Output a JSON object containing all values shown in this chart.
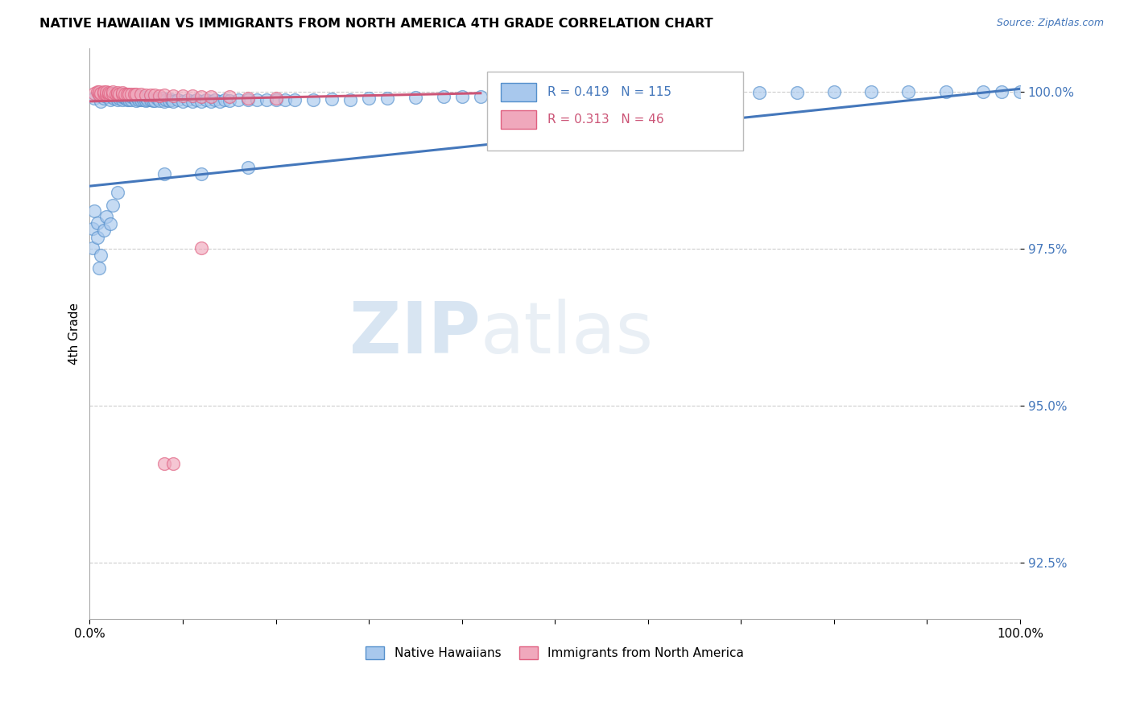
{
  "title": "NATIVE HAWAIIAN VS IMMIGRANTS FROM NORTH AMERICA 4TH GRADE CORRELATION CHART",
  "source": "Source: ZipAtlas.com",
  "ylabel": "4th Grade",
  "xlim": [
    0.0,
    1.0
  ],
  "ylim": [
    0.916,
    1.007
  ],
  "yticks": [
    0.925,
    0.95,
    0.975,
    1.0
  ],
  "ytick_labels": [
    "92.5%",
    "95.0%",
    "97.5%",
    "100.0%"
  ],
  "blue_color": "#A8C8ED",
  "pink_color": "#F0A8BC",
  "blue_edge_color": "#5590CC",
  "pink_edge_color": "#E06080",
  "blue_line_color": "#4477BB",
  "pink_line_color": "#CC5577",
  "tick_label_color": "#4477BB",
  "watermark_color": "#D8E8F5",
  "blue_scatter_x": [
    0.005,
    0.01,
    0.01,
    0.012,
    0.015,
    0.015,
    0.018,
    0.02,
    0.02,
    0.022,
    0.022,
    0.024,
    0.025,
    0.025,
    0.026,
    0.028,
    0.03,
    0.03,
    0.032,
    0.033,
    0.033,
    0.035,
    0.035,
    0.036,
    0.038,
    0.04,
    0.04,
    0.042,
    0.043,
    0.045,
    0.045,
    0.048,
    0.05,
    0.05,
    0.052,
    0.054,
    0.055,
    0.056,
    0.058,
    0.06,
    0.06,
    0.062,
    0.065,
    0.068,
    0.07,
    0.072,
    0.075,
    0.078,
    0.08,
    0.082,
    0.085,
    0.088,
    0.09,
    0.095,
    0.1,
    0.105,
    0.11,
    0.115,
    0.12,
    0.125,
    0.13,
    0.135,
    0.14,
    0.145,
    0.15,
    0.16,
    0.17,
    0.18,
    0.19,
    0.2,
    0.21,
    0.22,
    0.24,
    0.26,
    0.28,
    0.3,
    0.32,
    0.35,
    0.38,
    0.4,
    0.42,
    0.45,
    0.48,
    0.5,
    0.53,
    0.56,
    0.6,
    0.64,
    0.68,
    0.72,
    0.76,
    0.8,
    0.84,
    0.88,
    0.92,
    0.96,
    0.98,
    1.0,
    0.003,
    0.003,
    0.005,
    0.008,
    0.008,
    0.01,
    0.012,
    0.015,
    0.018,
    0.022,
    0.025,
    0.03,
    0.08,
    0.12,
    0.17
  ],
  "blue_scatter_y": [
    0.999,
    0.9995,
    0.9998,
    0.9985,
    0.999,
    0.9998,
    0.9992,
    0.9996,
    0.9998,
    0.9988,
    0.9995,
    0.9992,
    0.9996,
    0.9998,
    0.999,
    0.9994,
    0.9988,
    0.9996,
    0.999,
    0.9993,
    0.9997,
    0.9988,
    0.9993,
    0.9997,
    0.9991,
    0.9987,
    0.9993,
    0.9988,
    0.9995,
    0.9988,
    0.9993,
    0.999,
    0.9986,
    0.9992,
    0.9988,
    0.9992,
    0.9988,
    0.9992,
    0.9988,
    0.9986,
    0.9991,
    0.9988,
    0.9988,
    0.9986,
    0.9986,
    0.999,
    0.9986,
    0.999,
    0.9985,
    0.9988,
    0.9986,
    0.9988,
    0.9985,
    0.9988,
    0.9985,
    0.9987,
    0.9985,
    0.9987,
    0.9985,
    0.9988,
    0.9985,
    0.9987,
    0.9985,
    0.9987,
    0.9986,
    0.9987,
    0.9987,
    0.9987,
    0.9988,
    0.9987,
    0.9988,
    0.9987,
    0.9988,
    0.9989,
    0.9988,
    0.999,
    0.999,
    0.9991,
    0.9992,
    0.9992,
    0.9992,
    0.9994,
    0.9993,
    0.9994,
    0.9995,
    0.9996,
    0.9997,
    0.9998,
    0.9998,
    0.9999,
    0.9999,
    1.0,
    1.0,
    1.0,
    1.0,
    1.0,
    1.0,
    1.0,
    0.9752,
    0.9782,
    0.9811,
    0.9768,
    0.9791,
    0.972,
    0.974,
    0.978,
    0.9801,
    0.979,
    0.982,
    0.984,
    0.987,
    0.987,
    0.988
  ],
  "pink_scatter_x": [
    0.005,
    0.008,
    0.01,
    0.01,
    0.012,
    0.015,
    0.015,
    0.018,
    0.018,
    0.02,
    0.02,
    0.022,
    0.025,
    0.025,
    0.028,
    0.03,
    0.03,
    0.032,
    0.035,
    0.035,
    0.038,
    0.04,
    0.042,
    0.045,
    0.048,
    0.05,
    0.055,
    0.06,
    0.065,
    0.07,
    0.075,
    0.08,
    0.09,
    0.1,
    0.11,
    0.12,
    0.13,
    0.15,
    0.17,
    0.2,
    0.12,
    0.08,
    0.09
  ],
  "pink_scatter_y": [
    0.9998,
    1.0,
    0.9996,
    1.0,
    0.9998,
    0.9998,
    1.0,
    0.9997,
    1.0,
    0.9997,
    0.9999,
    0.9998,
    0.9997,
    1.0,
    0.9997,
    0.9997,
    0.9999,
    0.9997,
    0.9997,
    0.9999,
    0.9996,
    0.9996,
    0.9997,
    0.9996,
    0.9996,
    0.9996,
    0.9996,
    0.9995,
    0.9995,
    0.9995,
    0.9994,
    0.9995,
    0.9994,
    0.9994,
    0.9994,
    0.9993,
    0.9992,
    0.9992,
    0.999,
    0.999,
    0.9752,
    0.9408,
    0.9408
  ],
  "blue_line_x": [
    0.0,
    1.0
  ],
  "blue_line_y": [
    0.985,
    1.0005
  ],
  "pink_line_x": [
    0.0,
    0.42
  ],
  "pink_line_y": [
    0.9985,
    0.9998
  ]
}
